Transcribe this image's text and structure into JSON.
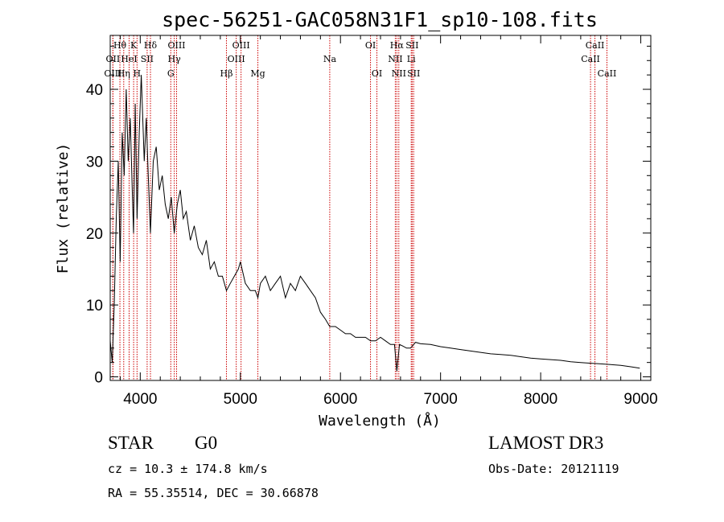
{
  "chart_data": {
    "type": "line",
    "title": "spec-56251-GAC058N31F1_sp10-108.fits",
    "xlabel": "Wavelength (Å)",
    "ylabel": "Flux (relative)",
    "xlim": [
      3700,
      9100
    ],
    "ylim": [
      -0.5,
      47.5
    ],
    "xticks": [
      "4000",
      "5000",
      "6000",
      "7000",
      "8000",
      "9000"
    ],
    "yticks": [
      "0",
      "10",
      "20",
      "30",
      "40"
    ],
    "grid": false,
    "line_color": "#000000",
    "marker_color": "#cc0000",
    "spectrum": {
      "x": [
        3700,
        3720,
        3740,
        3760,
        3780,
        3800,
        3820,
        3840,
        3860,
        3880,
        3900,
        3920,
        3933,
        3950,
        3968,
        3990,
        4010,
        4040,
        4060,
        4080,
        4102,
        4130,
        4160,
        4190,
        4220,
        4250,
        4280,
        4310,
        4340,
        4370,
        4400,
        4430,
        4460,
        4500,
        4540,
        4580,
        4620,
        4660,
        4700,
        4740,
        4780,
        4820,
        4861,
        4900,
        4940,
        4980,
        5000,
        5050,
        5100,
        5150,
        5175,
        5200,
        5250,
        5300,
        5350,
        5400,
        5450,
        5500,
        5550,
        5600,
        5650,
        5700,
        5750,
        5800,
        5850,
        5893,
        5950,
        6000,
        6050,
        6100,
        6150,
        6200,
        6250,
        6300,
        6350,
        6400,
        6450,
        6500,
        6540,
        6563,
        6590,
        6620,
        6660,
        6700,
        6750,
        6800,
        6900,
        7000,
        7100,
        7200,
        7300,
        7400,
        7500,
        7600,
        7700,
        7800,
        7900,
        8000,
        8100,
        8200,
        8300,
        8400,
        8500,
        8600,
        8700,
        8800,
        8900,
        8990
      ],
      "y": [
        5,
        2,
        10,
        22,
        30,
        16,
        34,
        28,
        40,
        30,
        36,
        26,
        20,
        38,
        22,
        34,
        42,
        30,
        36,
        28,
        20,
        30,
        32,
        26,
        28,
        24,
        22,
        25,
        20,
        24,
        26,
        22,
        23,
        19,
        21,
        18,
        17,
        19,
        15,
        16,
        14,
        14,
        12,
        13,
        14,
        15,
        16,
        13,
        12,
        12,
        11,
        13,
        14,
        12,
        13,
        14,
        11,
        13,
        12,
        14,
        13,
        12,
        11,
        9,
        8,
        7,
        7,
        6.5,
        6,
        6,
        5.5,
        5.5,
        5.5,
        5,
        5,
        5.5,
        5,
        4.5,
        4.5,
        0.8,
        4.5,
        4.3,
        4,
        4,
        4.8,
        4.6,
        4.5,
        4.2,
        4,
        3.8,
        3.6,
        3.4,
        3.2,
        3.1,
        3.0,
        2.8,
        2.6,
        2.5,
        2.4,
        2.3,
        2.1,
        2.0,
        1.9,
        1.8,
        1.7,
        1.6,
        1.4,
        1.2
      ]
    },
    "lines": [
      {
        "label": "Hθ",
        "wave": 3797,
        "row": 0
      },
      {
        "label": "OII",
        "wave": 3727,
        "row": 1
      },
      {
        "label": "OIII",
        "wave": 3727,
        "row": 2
      },
      {
        "label": "K",
        "wave": 3934,
        "row": 0
      },
      {
        "label": "HeI",
        "wave": 3889,
        "row": 1
      },
      {
        "label": "Hη",
        "wave": 3835,
        "row": 2
      },
      {
        "label": "Hδ",
        "wave": 4102,
        "row": 0
      },
      {
        "label": "SII",
        "wave": 4069,
        "row": 1
      },
      {
        "label": "H",
        "wave": 3968,
        "row": 2
      },
      {
        "label": "OIII",
        "wave": 4363,
        "row": 0
      },
      {
        "label": "Hγ",
        "wave": 4340,
        "row": 1
      },
      {
        "label": "G",
        "wave": 4305,
        "row": 2
      },
      {
        "label": "OIII",
        "wave": 5007,
        "row": 0
      },
      {
        "label": "OIII",
        "wave": 4959,
        "row": 1
      },
      {
        "label": "Hβ",
        "wave": 4861,
        "row": 2
      },
      {
        "label": "Mg",
        "wave": 5175,
        "row": 2
      },
      {
        "label": "Na",
        "wave": 5893,
        "row": 1
      },
      {
        "label": "OI",
        "wave": 6300,
        "row": 0
      },
      {
        "label": "OI",
        "wave": 6364,
        "row": 2
      },
      {
        "label": "Hα",
        "wave": 6563,
        "row": 0
      },
      {
        "label": "SII",
        "wave": 6716,
        "row": 0
      },
      {
        "label": "NII",
        "wave": 6548,
        "row": 1
      },
      {
        "label": "Li",
        "wave": 6707,
        "row": 1
      },
      {
        "label": "NII",
        "wave": 6583,
        "row": 2
      },
      {
        "label": "SII",
        "wave": 6731,
        "row": 2
      },
      {
        "label": "CaII",
        "wave": 8542,
        "row": 0
      },
      {
        "label": "CaII",
        "wave": 8498,
        "row": 1
      },
      {
        "label": "CaII",
        "wave": 8662,
        "row": 2
      }
    ]
  },
  "info": {
    "class": "STAR",
    "subclass": "G0",
    "survey": "LAMOST DR3",
    "cz": "cz = 10.3 ± 174.8 km/s",
    "obs_date": "Obs-Date: 20121119",
    "radec": "RA =  55.35514, DEC =  30.66878"
  }
}
